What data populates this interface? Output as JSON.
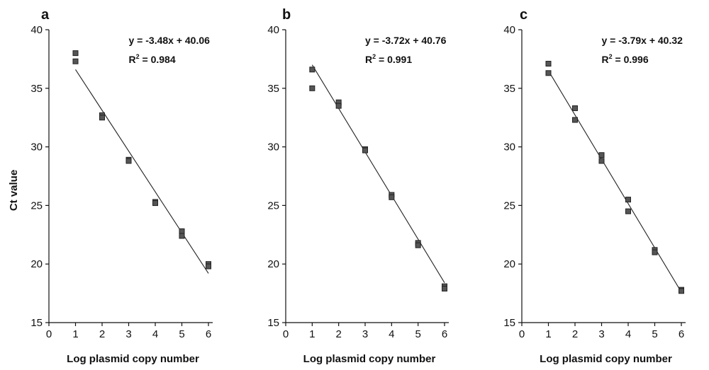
{
  "chart_data": [
    {
      "type": "scatter",
      "panel": "a",
      "ylabel": "Ct value",
      "xlabel": "Log plasmid copy number",
      "xlim": [
        0,
        6
      ],
      "ylim": [
        15,
        40
      ],
      "xticks": [
        "0",
        "1",
        "2",
        "3",
        "4",
        "5",
        "6"
      ],
      "yticks": [
        "15",
        "20",
        "25",
        "30",
        "35",
        "40"
      ],
      "equation": "y = -3.48x + 40.06",
      "r2_prefix": "R",
      "r2_sup": "2",
      "r2_value": " = 0.984",
      "points": [
        {
          "x": 1,
          "y": 38.0
        },
        {
          "x": 1,
          "y": 37.3
        },
        {
          "x": 2,
          "y": 32.7
        },
        {
          "x": 2,
          "y": 32.5
        },
        {
          "x": 3,
          "y": 28.9
        },
        {
          "x": 3,
          "y": 28.8
        },
        {
          "x": 4,
          "y": 25.3
        },
        {
          "x": 4,
          "y": 25.2
        },
        {
          "x": 5,
          "y": 22.8
        },
        {
          "x": 5,
          "y": 22.4
        },
        {
          "x": 6,
          "y": 20.0
        },
        {
          "x": 6,
          "y": 19.8
        }
      ],
      "fit_line": {
        "x": [
          1,
          6
        ],
        "y": [
          36.6,
          19.2
        ]
      }
    },
    {
      "type": "scatter",
      "panel": "b",
      "xlabel": "Log plasmid copy number",
      "xlim": [
        0,
        6
      ],
      "ylim": [
        15,
        40
      ],
      "xticks": [
        "0",
        "1",
        "2",
        "3",
        "4",
        "5",
        "6"
      ],
      "yticks": [
        "15",
        "20",
        "25",
        "30",
        "35",
        "40"
      ],
      "equation": "y = -3.72x + 40.76",
      "r2_prefix": "R",
      "r2_sup": "2",
      "r2_value": " = 0.991",
      "points": [
        {
          "x": 1,
          "y": 36.6
        },
        {
          "x": 1,
          "y": 35.0
        },
        {
          "x": 2,
          "y": 33.8
        },
        {
          "x": 2,
          "y": 33.5
        },
        {
          "x": 3,
          "y": 29.8
        },
        {
          "x": 3,
          "y": 29.7
        },
        {
          "x": 4,
          "y": 25.9
        },
        {
          "x": 4,
          "y": 25.7
        },
        {
          "x": 5,
          "y": 21.8
        },
        {
          "x": 5,
          "y": 21.6
        },
        {
          "x": 6,
          "y": 18.1
        },
        {
          "x": 6,
          "y": 17.9
        }
      ],
      "fit_line": {
        "x": [
          1,
          6
        ],
        "y": [
          37.0,
          18.4
        ]
      }
    },
    {
      "type": "scatter",
      "panel": "c",
      "xlabel": "Log plasmid copy number",
      "xlim": [
        0,
        6
      ],
      "ylim": [
        15,
        40
      ],
      "xticks": [
        "0",
        "1",
        "2",
        "3",
        "4",
        "5",
        "6"
      ],
      "yticks": [
        "15",
        "20",
        "25",
        "30",
        "35",
        "40"
      ],
      "equation": "y = -3.79x + 40.32",
      "r2_prefix": "R",
      "r2_sup": "2",
      "r2_value": " = 0.996",
      "points": [
        {
          "x": 1,
          "y": 37.1
        },
        {
          "x": 1,
          "y": 36.3
        },
        {
          "x": 2,
          "y": 33.3
        },
        {
          "x": 2,
          "y": 32.3
        },
        {
          "x": 3,
          "y": 29.3
        },
        {
          "x": 3,
          "y": 28.8
        },
        {
          "x": 4,
          "y": 25.5
        },
        {
          "x": 4,
          "y": 24.5
        },
        {
          "x": 5,
          "y": 21.2
        },
        {
          "x": 5,
          "y": 21.0
        },
        {
          "x": 6,
          "y": 17.8
        },
        {
          "x": 6,
          "y": 17.7
        }
      ],
      "fit_line": {
        "x": [
          1,
          6
        ],
        "y": [
          36.5,
          17.6
        ]
      }
    }
  ]
}
